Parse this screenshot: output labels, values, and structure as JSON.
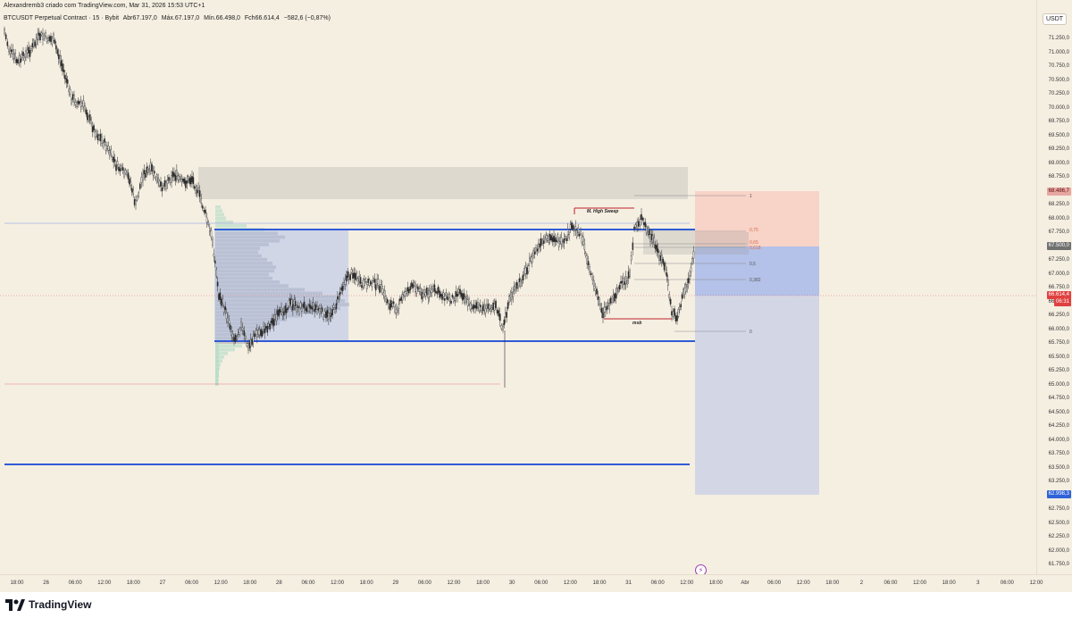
{
  "header": {
    "publisher": "Alexandremb3 criado com TradingView.com, Mar 31, 2026 15:53 UTC+1"
  },
  "symbol": {
    "name": "BTCUSDT Perpetual Contract · 15 · Bybit",
    "open": "Abr67.197,0",
    "high": "Máx.67.197,0",
    "low": "Mín.66.498,0",
    "close": "Fch66.614,4",
    "change": "−582,6 (−0,87%)"
  },
  "currency": "USDT",
  "price_ticks": [
    "71.250,0",
    "71.000,0",
    "70.750,0",
    "70.500,0",
    "70.250,0",
    "70.000,0",
    "69.750,0",
    "69.500,0",
    "69.250,0",
    "69.000,0",
    "68.750,0",
    "68.500,0",
    "68.250,0",
    "68.000,0",
    "67.750,0",
    "67.500,0",
    "67.250,0",
    "67.000,0",
    "66.750,0",
    "66.500,0",
    "66.250,0",
    "66.000,0",
    "65.750,0",
    "65.500,0",
    "65.250,0",
    "65.000,0",
    "64.750,0",
    "64.500,0",
    "64.250,0",
    "64.000,0",
    "63.750,0",
    "63.500,0",
    "63.250,0",
    "63.000,0",
    "62.750,0",
    "62.500,0",
    "62.250,0",
    "62.000,0",
    "61.750,0"
  ],
  "price_tags": {
    "stop": "68.486,7",
    "entry": "67.500,0",
    "last": "66.614,4",
    "countdown": "06:31",
    "target": "62.998,3"
  },
  "time_ticks": [
    "18:00",
    "26",
    "06:00",
    "12:00",
    "18:00",
    "27",
    "06:00",
    "12:00",
    "18:00",
    "28",
    "06:00",
    "12:00",
    "18:00",
    "29",
    "06:00",
    "12:00",
    "18:00",
    "30",
    "06:00",
    "12:00",
    "18:00",
    "31",
    "06:00",
    "12:00",
    "18:00",
    "Abr",
    "06:00",
    "12:00",
    "18:00",
    "2",
    "06:00",
    "12:00",
    "18:00",
    "3",
    "06:00",
    "12:00"
  ],
  "annotations": {
    "sweep_label": "M. High Sweep",
    "msb_label": "msb",
    "fib_1": "1",
    "fib_075": "0,75",
    "fib_065": "0,65",
    "fib_0618": "0,618",
    "fib_05": "0,5",
    "fib_0382": "0,382",
    "fib_0": "0"
  },
  "colors": {
    "background": "#f5efe2",
    "candle": "#2b2b2b",
    "level_line": "#2f5bd6",
    "stop_zone": "#f7c9bf",
    "target_zone": "#c7cfe6",
    "entry_zone": "#a7b8ea",
    "supply_zone": "#d9d5cb",
    "red": "#e04040",
    "green": "#1d8a5b"
  },
  "footer": {
    "brand": "TradingView"
  }
}
